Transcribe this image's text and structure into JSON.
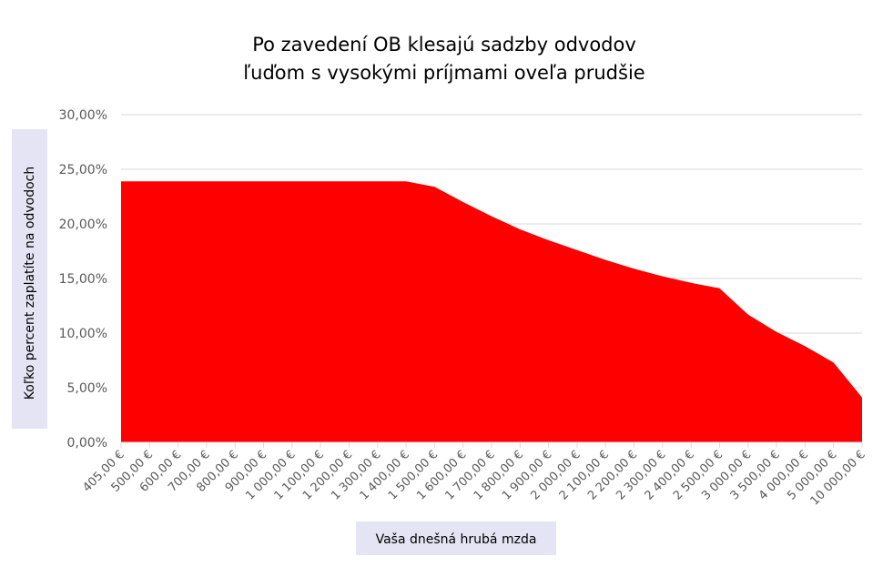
{
  "chart_data": {
    "type": "area",
    "title_lines": [
      "Po zavedení OB klesajú sadzby odvodov",
      "ľuďom s vysokými príjmami oveľa prudšie"
    ],
    "xlabel": "Vaša dnešná hrubá mzda",
    "ylabel": "Koľko percent zaplatíte na odvodoch",
    "ylim": [
      0,
      30
    ],
    "yticks": [
      "0,00%",
      "5,00%",
      "10,00%",
      "15,00%",
      "20,00%",
      "25,00%",
      "30,00%"
    ],
    "grid": true,
    "legend": "none",
    "categories": [
      "405,00 €",
      "500,00 €",
      "600,00 €",
      "700,00 €",
      "800,00 €",
      "900,00 €",
      "1 000,00 €",
      "1 100,00 €",
      "1 200,00 €",
      "1 300,00 €",
      "1 400,00 €",
      "1 500,00 €",
      "1 600,00 €",
      "1 700,00 €",
      "1 800,00 €",
      "1 900,00 €",
      "2 000,00 €",
      "2 100,00 €",
      "2 200,00 €",
      "2 300,00 €",
      "2 400,00 €",
      "2 500,00 €",
      "3 000,00 €",
      "3 500,00 €",
      "4 000,00 €",
      "5 000,00 €",
      "10 000,00 €"
    ],
    "values": [
      23.9,
      23.9,
      23.9,
      23.9,
      23.9,
      23.9,
      23.9,
      23.9,
      23.9,
      23.9,
      23.9,
      23.4,
      22.0,
      20.7,
      19.5,
      18.5,
      17.6,
      16.7,
      15.9,
      15.2,
      14.6,
      14.1,
      11.7,
      10.1,
      8.8,
      7.3,
      4.1
    ]
  },
  "colors": {
    "area_fill": "#ff0000",
    "grid": "#d9d9d9",
    "axis_text": "#595959",
    "label_box": "#e4e4f4",
    "title_text": "#000000"
  }
}
